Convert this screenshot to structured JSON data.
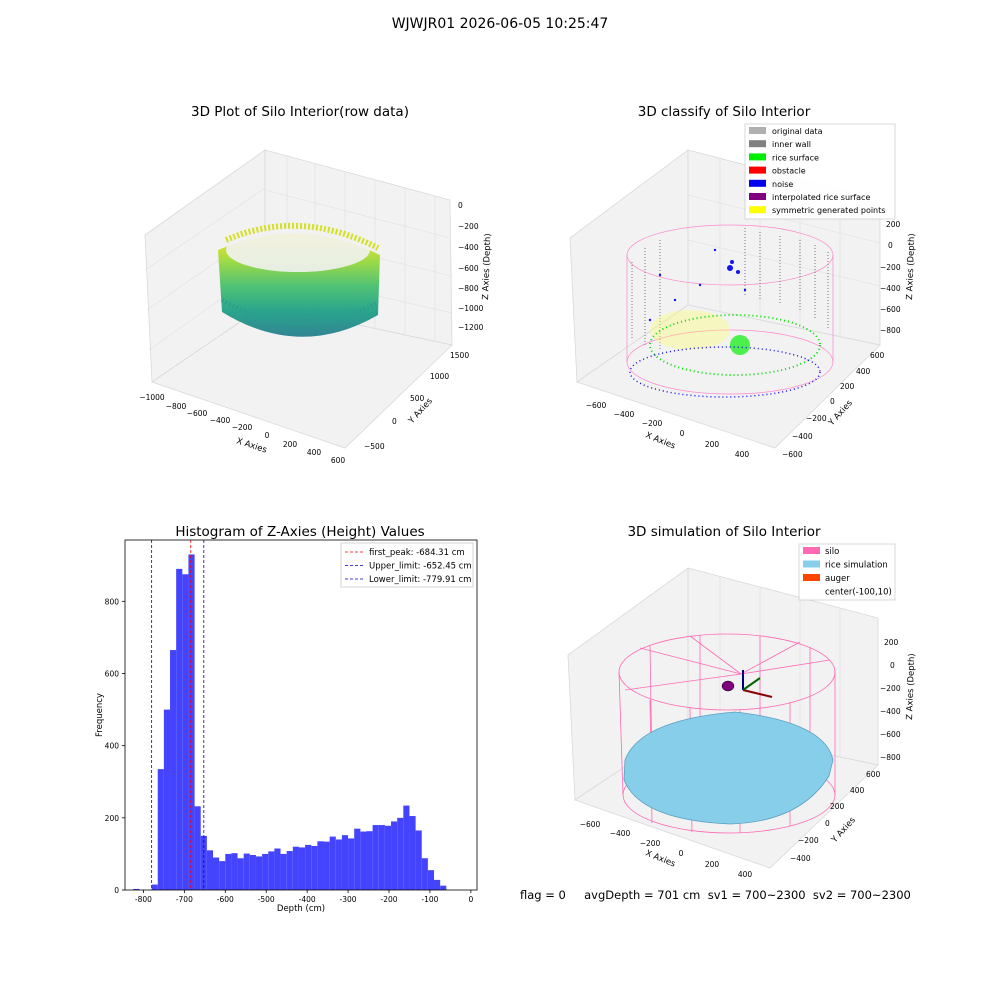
{
  "suptitle": "WJWJR01 2026-06-05 10:25:47",
  "footer": "flag = 0     avgDepth = 701 cm  sv1 = 700~2300  sv2 = 700~2300",
  "chart_data": [
    {
      "type": "scatter3d",
      "title": "3D Plot of Silo Interior(row data)",
      "xlabel": "X Axies",
      "ylabel": "Y Axies",
      "zlabel": "Z Axies (Depth)",
      "x_ticks": [
        "−1000",
        "−800",
        "−600",
        "−400",
        "−200",
        "0",
        "200",
        "400",
        "600"
      ],
      "y_ticks": [
        "−500",
        "0",
        "500",
        "1000",
        "1500"
      ],
      "z_ticks": [
        "0",
        "−200",
        "−400",
        "−600",
        "−800",
        "−1000",
        "−1200"
      ],
      "colormap": "viridis",
      "description_points": "cylindrical point cloud, colored by depth"
    },
    {
      "type": "scatter3d",
      "title": "3D classify of Silo Interior",
      "xlabel": "X Axies",
      "ylabel": "Y Axies",
      "zlabel": "Z Axies (Depth)",
      "x_ticks": [
        "−600",
        "−400",
        "−200",
        "0",
        "200",
        "400"
      ],
      "y_ticks": [
        "−600",
        "−400",
        "−200",
        "0",
        "200",
        "400",
        "600"
      ],
      "z_ticks": [
        "200",
        "0",
        "−200",
        "−400",
        "−600",
        "−800"
      ],
      "legend": [
        {
          "label": "original data",
          "color": "#b0b0b0"
        },
        {
          "label": "inner wall",
          "color": "#808080"
        },
        {
          "label": "rice surface",
          "color": "#00ee00"
        },
        {
          "label": "obstacle",
          "color": "#ff0000"
        },
        {
          "label": "noise",
          "color": "#0000ee"
        },
        {
          "label": "interpolated rice surface",
          "color": "#800080"
        },
        {
          "label": "symmetric generated points",
          "color": "#ffff00"
        }
      ],
      "legend_position": "upper-right"
    },
    {
      "type": "bar",
      "title": "Histogram of Z-Axies (Height) Values",
      "xlabel": "Depth (cm)",
      "ylabel": "Frequency",
      "xlim": [
        -845,
        15
      ],
      "ylim": [
        0,
        970
      ],
      "x_ticks": [
        -800,
        -700,
        -600,
        -500,
        -400,
        -300,
        -200,
        -100,
        0
      ],
      "y_ticks": [
        0,
        200,
        400,
        600,
        800
      ],
      "bin_width": 15,
      "bins": [
        [
          -825,
          3
        ],
        [
          -780,
          15
        ],
        [
          -765,
          335
        ],
        [
          -750,
          500
        ],
        [
          -735,
          665
        ],
        [
          -720,
          890
        ],
        [
          -705,
          875
        ],
        [
          -690,
          930
        ],
        [
          -675,
          232
        ],
        [
          -660,
          150
        ],
        [
          -645,
          110
        ],
        [
          -630,
          90
        ],
        [
          -615,
          80
        ],
        [
          -600,
          100
        ],
        [
          -585,
          102
        ],
        [
          -570,
          88
        ],
        [
          -555,
          101
        ],
        [
          -540,
          97
        ],
        [
          -525,
          93
        ],
        [
          -510,
          100
        ],
        [
          -495,
          107
        ],
        [
          -480,
          115
        ],
        [
          -465,
          100
        ],
        [
          -450,
          108
        ],
        [
          -435,
          120
        ],
        [
          -420,
          118
        ],
        [
          -405,
          125
        ],
        [
          -390,
          122
        ],
        [
          -375,
          135
        ],
        [
          -360,
          134
        ],
        [
          -345,
          148
        ],
        [
          -330,
          140
        ],
        [
          -315,
          152
        ],
        [
          -300,
          143
        ],
        [
          -285,
          170
        ],
        [
          -270,
          162
        ],
        [
          -255,
          163
        ],
        [
          -240,
          180
        ],
        [
          -225,
          180
        ],
        [
          -210,
          178
        ],
        [
          -195,
          190
        ],
        [
          -180,
          200
        ],
        [
          -165,
          234
        ],
        [
          -150,
          205
        ],
        [
          -135,
          165
        ],
        [
          -120,
          88
        ],
        [
          -105,
          55
        ],
        [
          -90,
          28
        ],
        [
          -75,
          12
        ]
      ],
      "bar_color": "#4444ff",
      "vlines": [
        {
          "x": -684.31,
          "color": "#ff0000",
          "label": "first_peak: -684.31 cm"
        },
        {
          "x": -652.45,
          "color": "#0000cc",
          "label": "Upper_limit: -652.45 cm"
        },
        {
          "x": -779.91,
          "color": "#0000cc",
          "label": "Lower_limit: -779.91 cm"
        }
      ],
      "legend_position": "upper-right"
    },
    {
      "type": "surface3d",
      "title": "3D simulation of Silo Interior",
      "xlabel": "X Axies",
      "ylabel": "Y Axies",
      "zlabel": "Z Axies (Depth)",
      "x_ticks": [
        "−600",
        "−400",
        "−200",
        "0",
        "200",
        "400"
      ],
      "y_ticks": [
        "−400",
        "−200",
        "0",
        "200",
        "400",
        "600"
      ],
      "z_ticks": [
        "200",
        "0",
        "−200",
        "−400",
        "−600",
        "−800"
      ],
      "legend": [
        {
          "label": "silo",
          "color": "#ff69b4"
        },
        {
          "label": "rice simulation",
          "color": "#87ceeb"
        },
        {
          "label": "auger",
          "color": "#ff4500"
        },
        {
          "label": "center(-100,10)",
          "color": ""
        }
      ],
      "legend_position": "upper-right"
    }
  ]
}
